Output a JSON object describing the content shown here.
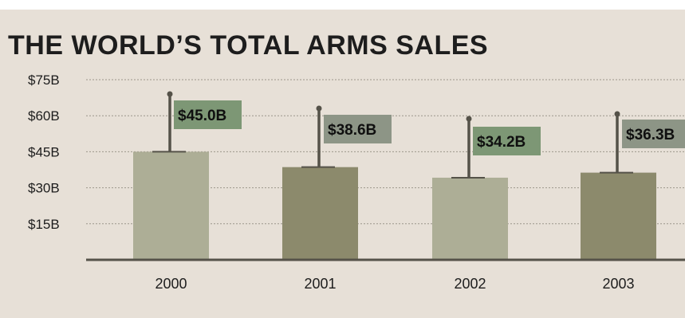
{
  "chart_data": {
    "type": "bar",
    "title": "THE WORLD’S TOTAL ARMS SALES",
    "categories": [
      "2000",
      "2001",
      "2002",
      "2003"
    ],
    "values": [
      45.0,
      38.6,
      34.2,
      36.3
    ],
    "value_labels": [
      "$45.0B",
      "$38.6B",
      "$34.2B",
      "$36.3B"
    ],
    "y_ticks": [
      {
        "value": 75,
        "label": "$75B"
      },
      {
        "value": 60,
        "label": "$60B"
      },
      {
        "value": 45,
        "label": "$45B"
      },
      {
        "value": 30,
        "label": "$30B"
      },
      {
        "value": 15,
        "label": "$15B"
      }
    ],
    "ylim": [
      0,
      75
    ],
    "grid": true,
    "xlabel": "",
    "ylabel": "",
    "colors": {
      "background": "#e7e0d7",
      "bar_light": "#adae96",
      "bar_dark": "#8c8a6c",
      "label_light": "#7d9775",
      "label_dark": "#8d9586",
      "axis": "#555249",
      "grid": "#9c968b",
      "text": "#1d1d1d"
    }
  }
}
